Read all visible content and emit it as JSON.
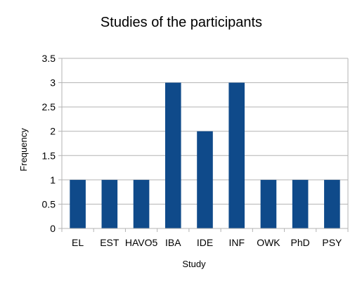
{
  "chart_data": {
    "type": "bar",
    "title": "Studies of the participants",
    "xlabel": "Study",
    "ylabel": "Frequency",
    "categories": [
      "EL",
      "EST",
      "HAVO5",
      "IBA",
      "IDE",
      "INF",
      "OWK",
      "PhD",
      "PSY"
    ],
    "values": [
      1,
      1,
      1,
      3,
      2,
      3,
      1,
      1,
      1
    ],
    "ylim": [
      0,
      3.5
    ],
    "yticks": [
      "0",
      "0.5",
      "1",
      "1.5",
      "2",
      "2.5",
      "3",
      "3.5"
    ],
    "grid": true,
    "legend": "none",
    "colors": {
      "bar": "#0f4a8a",
      "grid": "#b3b3b3",
      "axis": "#b3b3b3"
    }
  }
}
